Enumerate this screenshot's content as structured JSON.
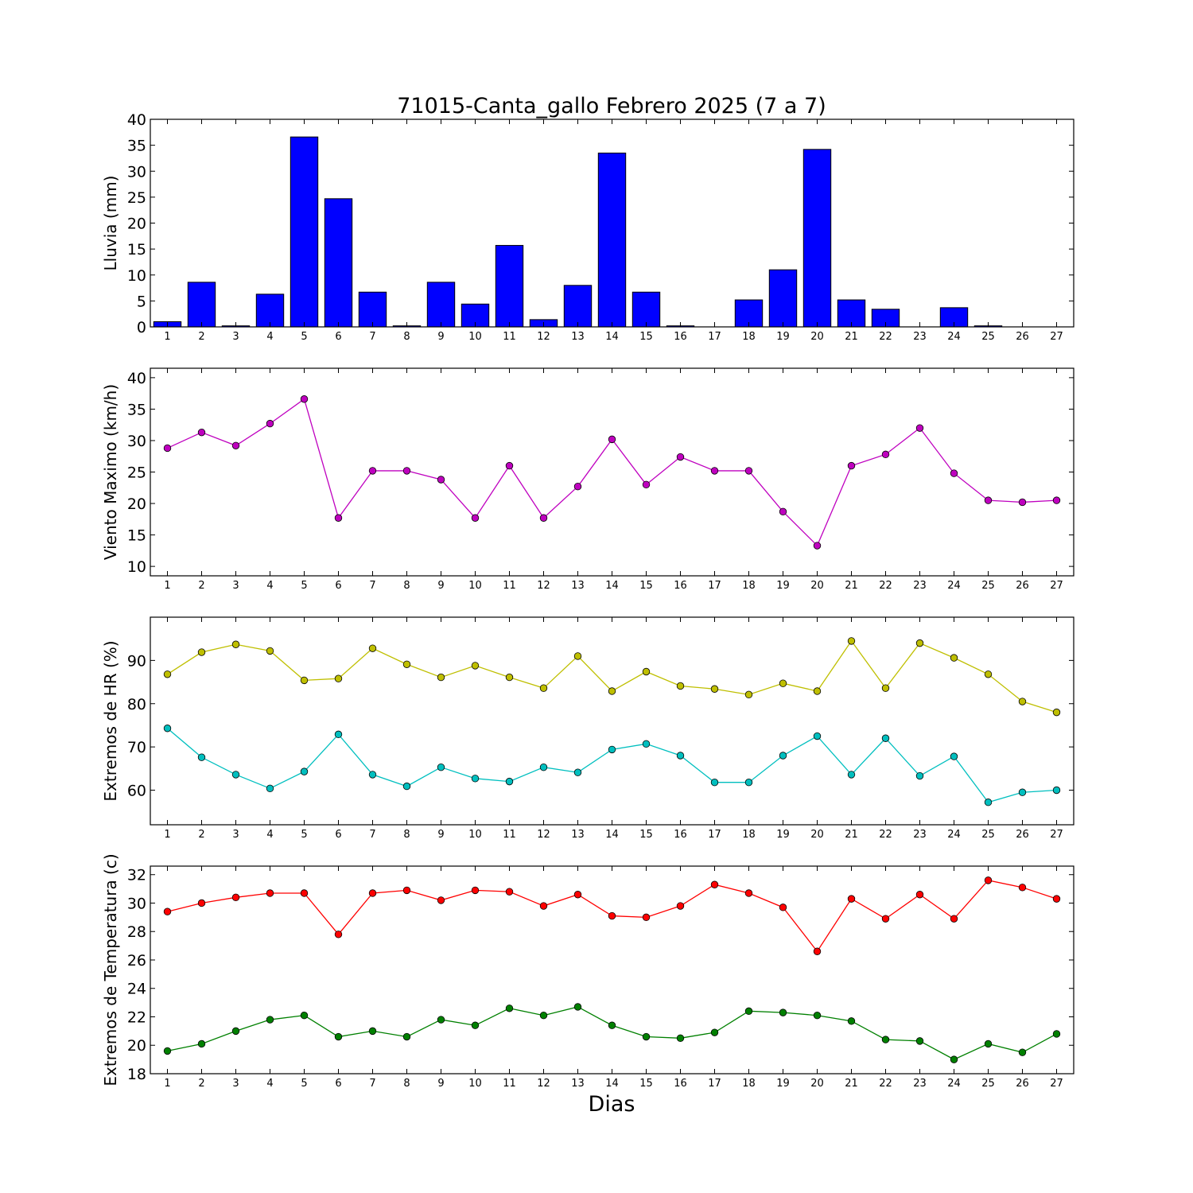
{
  "title": "71015-Canta_gallo Febrero 2025  (7 a 7)",
  "xlabel": "Dias",
  "colors": {
    "rain": "#0000ff",
    "wind": "#bf00bf",
    "hr_max": "#bfbf00",
    "hr_min": "#00bfbf",
    "temp_max": "#ff0000",
    "temp_min": "#008000"
  },
  "chart_data": [
    {
      "type": "bar",
      "title": "71015-Canta_gallo Febrero 2025  (7 a 7)",
      "ylabel": "Lluvia (mm)",
      "xlabel": "",
      "categories": [
        "1",
        "2",
        "3",
        "4",
        "5",
        "6",
        "7",
        "8",
        "9",
        "10",
        "11",
        "12",
        "13",
        "14",
        "15",
        "16",
        "17",
        "18",
        "19",
        "20",
        "21",
        "22",
        "23",
        "24",
        "25",
        "26",
        "27"
      ],
      "x": [
        1,
        2,
        3,
        4,
        5,
        6,
        7,
        8,
        9,
        10,
        11,
        12,
        13,
        14,
        15,
        16,
        17,
        18,
        19,
        20,
        21,
        22,
        23,
        24,
        25,
        26,
        27
      ],
      "values": [
        1.0,
        8.6,
        0.2,
        6.3,
        36.6,
        24.7,
        6.7,
        0.2,
        8.6,
        4.4,
        15.7,
        1.4,
        8.0,
        33.5,
        6.7,
        0.2,
        0.0,
        5.2,
        11.0,
        34.2,
        5.2,
        3.4,
        0.0,
        3.7,
        0.2,
        0.0,
        0.0
      ],
      "ylim": [
        0,
        40
      ],
      "yticks": [
        0,
        5,
        10,
        15,
        20,
        25,
        30,
        35,
        40
      ],
      "xlim": [
        0.5,
        27.5
      ],
      "grid": false
    },
    {
      "type": "line",
      "ylabel": "Viento Maximo (km/h)",
      "xlabel": "",
      "x": [
        1,
        2,
        3,
        4,
        5,
        6,
        7,
        8,
        9,
        10,
        11,
        12,
        13,
        14,
        15,
        16,
        17,
        18,
        19,
        20,
        21,
        22,
        23,
        24,
        25,
        26,
        27
      ],
      "series": [
        {
          "values": [
            28.8,
            31.3,
            29.2,
            32.7,
            36.6,
            17.7,
            25.2,
            25.2,
            23.8,
            17.7,
            26.0,
            17.7,
            22.7,
            30.2,
            23.0,
            27.4,
            25.2,
            25.2,
            18.7,
            13.3,
            26.0,
            27.8,
            32.0,
            24.8,
            20.5,
            20.2,
            20.5
          ]
        }
      ],
      "ylim": [
        8.5,
        41.5
      ],
      "yticks": [
        10,
        15,
        20,
        25,
        30,
        35,
        40
      ],
      "xlim": [
        0.5,
        27.5
      ],
      "grid": false
    },
    {
      "type": "line",
      "ylabel": "Extremos de HR (%)",
      "xlabel": "",
      "x": [
        1,
        2,
        3,
        4,
        5,
        6,
        7,
        8,
        9,
        10,
        11,
        12,
        13,
        14,
        15,
        16,
        17,
        18,
        19,
        20,
        21,
        22,
        23,
        24,
        25,
        26,
        27
      ],
      "series": [
        {
          "values": [
            86.8,
            91.9,
            93.7,
            92.2,
            85.4,
            85.8,
            92.8,
            89.1,
            86.1,
            88.8,
            86.1,
            83.6,
            91.0,
            82.9,
            87.4,
            84.1,
            83.4,
            82.1,
            84.7,
            82.9,
            94.5,
            83.6,
            94.0,
            90.6,
            86.8,
            80.5,
            78.0
          ]
        },
        {
          "values": [
            74.3,
            67.6,
            63.6,
            60.4,
            64.3,
            72.9,
            63.6,
            60.9,
            65.3,
            62.7,
            62.0,
            65.3,
            64.1,
            69.4,
            70.7,
            68.0,
            61.8,
            61.8,
            68.0,
            72.5,
            63.6,
            72.0,
            63.3,
            67.8,
            57.2,
            59.5,
            60.0
          ]
        }
      ],
      "ylim": [
        52,
        100
      ],
      "yticks": [
        60,
        70,
        80,
        90
      ],
      "xlim": [
        0.5,
        27.5
      ],
      "grid": false
    },
    {
      "type": "line",
      "ylabel": "Extremos de Temperatura (c)",
      "xlabel": "Dias",
      "x": [
        1,
        2,
        3,
        4,
        5,
        6,
        7,
        8,
        9,
        10,
        11,
        12,
        13,
        14,
        15,
        16,
        17,
        18,
        19,
        20,
        21,
        22,
        23,
        24,
        25,
        26,
        27
      ],
      "series": [
        {
          "values": [
            29.4,
            30.0,
            30.4,
            30.7,
            30.7,
            27.8,
            30.7,
            30.9,
            30.2,
            30.9,
            30.8,
            29.8,
            30.6,
            29.1,
            29.0,
            29.8,
            31.3,
            30.7,
            29.7,
            26.6,
            30.3,
            28.9,
            30.6,
            28.9,
            31.6,
            31.1,
            30.3
          ]
        },
        {
          "values": [
            19.6,
            20.1,
            21.0,
            21.8,
            22.1,
            20.6,
            21.0,
            20.6,
            21.8,
            21.4,
            22.6,
            22.1,
            22.7,
            21.4,
            20.6,
            20.5,
            20.9,
            22.4,
            22.3,
            22.1,
            21.7,
            20.4,
            20.3,
            19.0,
            20.1,
            19.5,
            20.8
          ]
        }
      ],
      "ylim": [
        18,
        32.6
      ],
      "yticks": [
        18,
        20,
        22,
        24,
        26,
        28,
        30,
        32
      ],
      "xlim": [
        0.5,
        27.5
      ],
      "grid": false
    }
  ]
}
